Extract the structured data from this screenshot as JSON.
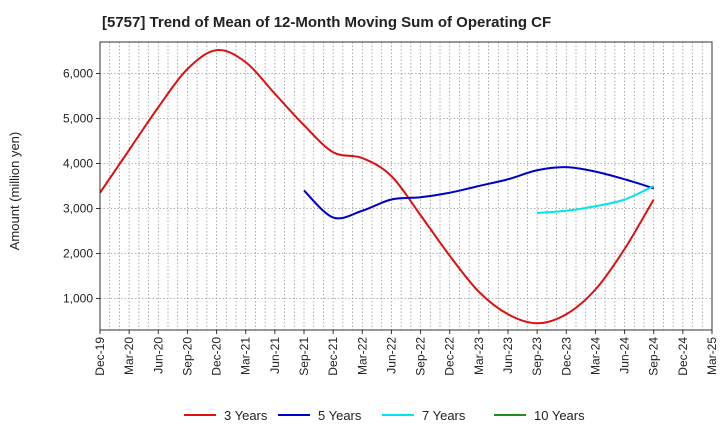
{
  "chart_data": {
    "type": "line",
    "title": "[5757]  Trend of Mean of 12-Month Moving Sum of Operating CF",
    "xlabel": "",
    "ylabel": "Amount (million yen)",
    "ylim": [
      300,
      6700
    ],
    "yticks": [
      1000,
      2000,
      3000,
      4000,
      5000,
      6000
    ],
    "ytick_labels": [
      "1,000",
      "2,000",
      "3,000",
      "4,000",
      "5,000",
      "6,000"
    ],
    "x_tick_labels": [
      "Dec-19",
      "Mar-20",
      "Jun-20",
      "Sep-20",
      "Dec-20",
      "Mar-21",
      "Jun-21",
      "Sep-21",
      "Dec-21",
      "Mar-22",
      "Jun-22",
      "Sep-22",
      "Dec-22",
      "Mar-23",
      "Jun-23",
      "Sep-23",
      "Dec-23",
      "Mar-24",
      "Jun-24",
      "Sep-24",
      "Dec-24",
      "Mar-25"
    ],
    "grid": true,
    "legend_position": "bottom",
    "series": [
      {
        "name": "3 Years",
        "color": "#dd1111",
        "x": [
          "Dec-19",
          "Mar-20",
          "Jun-20",
          "Sep-20",
          "Dec-20",
          "Mar-21",
          "Jun-21",
          "Sep-21",
          "Dec-21",
          "Mar-22",
          "Jun-22",
          "Sep-22",
          "Dec-22",
          "Mar-23",
          "Jun-23",
          "Sep-23",
          "Dec-23",
          "Mar-24",
          "Jun-24",
          "Sep-24"
        ],
        "values": [
          3350,
          4300,
          5250,
          6100,
          6520,
          6250,
          5550,
          4850,
          4250,
          4120,
          3720,
          2850,
          1950,
          1150,
          650,
          450,
          650,
          1200,
          2100,
          3200
        ]
      },
      {
        "name": "5 Years",
        "color": "#0000cc",
        "x": [
          "Sep-21",
          "Dec-21",
          "Mar-22",
          "Jun-22",
          "Sep-22",
          "Dec-22",
          "Mar-23",
          "Jun-23",
          "Sep-23",
          "Dec-23",
          "Mar-24",
          "Jun-24",
          "Sep-24"
        ],
        "values": [
          3400,
          2800,
          2950,
          3200,
          3250,
          3350,
          3500,
          3650,
          3850,
          3920,
          3820,
          3650,
          3450
        ]
      },
      {
        "name": "7 Years",
        "color": "#00e5ee",
        "x": [
          "Sep-23",
          "Dec-23",
          "Mar-24",
          "Jun-24",
          "Sep-24"
        ],
        "values": [
          2900,
          2950,
          3050,
          3200,
          3500
        ]
      },
      {
        "name": "10 Years",
        "color": "#228b22",
        "x": [],
        "values": []
      }
    ]
  }
}
